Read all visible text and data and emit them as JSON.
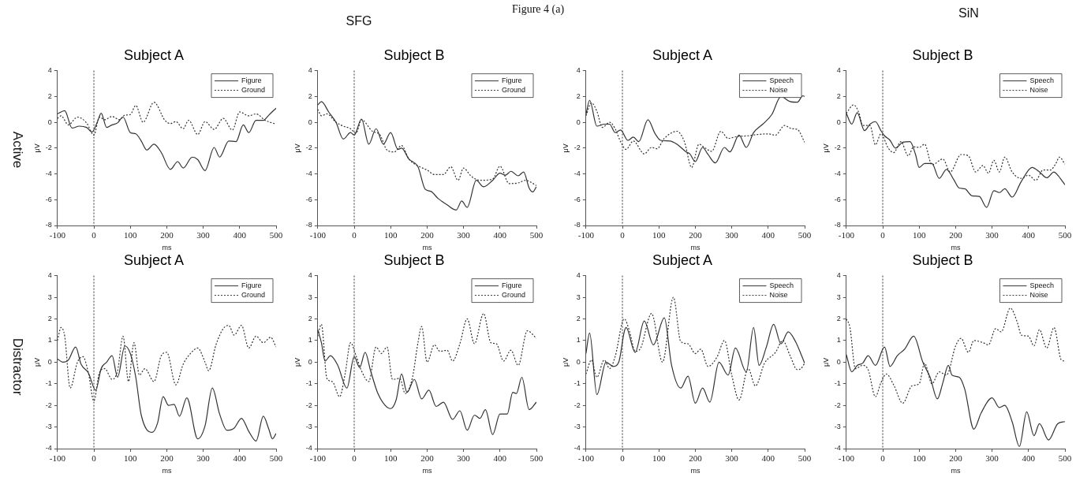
{
  "chart_data": [
    {
      "type": "line",
      "title": "Subject A",
      "xlabel": "ms",
      "ylabel": "μV",
      "annotations": [
        "Figure 4 (a)",
        "SFG",
        "Active"
      ],
      "xlim": [
        -100,
        500
      ],
      "xticks": [
        -100,
        0,
        100,
        200,
        300,
        400,
        500
      ],
      "ylim": [
        -8,
        4
      ],
      "yticks": [
        -8,
        -6,
        -4,
        -2,
        0,
        2,
        4
      ],
      "grid": false,
      "legend": "top right",
      "marker": "none",
      "ref_lines": [
        {
          "axis": "x",
          "value": 0,
          "line_style": "dotted",
          "color": "#333333"
        }
      ],
      "series": [
        {
          "name": "Figure",
          "color": "#333333",
          "line_style": "solid",
          "x": [
            -100,
            -80,
            -60,
            -40,
            -20,
            -5,
            10,
            20,
            35,
            50,
            65,
            80,
            100,
            115,
            130,
            145,
            165,
            185,
            210,
            230,
            245,
            270,
            285,
            305,
            330,
            345,
            370,
            390,
            410,
            425,
            445,
            465,
            480,
            500
          ],
          "values": [
            0.65,
            0.9,
            -0.45,
            -0.3,
            -0.4,
            -0.75,
            0.05,
            0.7,
            -0.4,
            -0.2,
            -0.05,
            0.4,
            -0.8,
            -0.9,
            -1.45,
            -2.15,
            -1.7,
            -2.35,
            -3.65,
            -3.05,
            -3.55,
            -2.7,
            -2.9,
            -3.75,
            -1.95,
            -2.7,
            -1.45,
            -1.5,
            -0.2,
            -0.8,
            0.15,
            0.15,
            0.55,
            1.1
          ]
        },
        {
          "name": "Ground",
          "color": "#333333",
          "line_style": "dotted",
          "x": [
            -100,
            -90,
            -70,
            -45,
            -20,
            0,
            15,
            30,
            50,
            70,
            85,
            100,
            115,
            135,
            165,
            195,
            210,
            225,
            245,
            260,
            285,
            305,
            330,
            355,
            380,
            400,
            425,
            445,
            470,
            500
          ],
          "values": [
            0.3,
            0.5,
            -0.2,
            0.4,
            -0.05,
            -1.0,
            0.4,
            0.2,
            0.45,
            0.2,
            0.55,
            0.6,
            1.3,
            0,
            1.55,
            0.15,
            -0.1,
            0.05,
            -0.5,
            0.15,
            -0.95,
            0.05,
            -0.55,
            0.3,
            -0.6,
            0.8,
            0.5,
            0.65,
            0.15,
            -0.15
          ]
        }
      ]
    },
    {
      "type": "line",
      "title": "Subject B",
      "xlabel": "ms",
      "ylabel": "μV",
      "xlim": [
        -100,
        500
      ],
      "xticks": [
        -100,
        0,
        100,
        200,
        300,
        400,
        500
      ],
      "ylim": [
        -8,
        4
      ],
      "yticks": [
        -8,
        -6,
        -4,
        -2,
        0,
        2,
        4
      ],
      "grid": false,
      "legend": "top right",
      "marker": "none",
      "ref_lines": [
        {
          "axis": "x",
          "value": 0,
          "line_style": "dotted",
          "color": "#333333"
        }
      ],
      "series": [
        {
          "name": "Figure",
          "color": "#333333",
          "line_style": "solid",
          "x": [
            -100,
            -90,
            -70,
            -50,
            -30,
            -10,
            0,
            20,
            40,
            60,
            80,
            100,
            120,
            130,
            150,
            175,
            195,
            210,
            230,
            255,
            280,
            295,
            310,
            335,
            355,
            380,
            400,
            415,
            430,
            450,
            465,
            480,
            490,
            500
          ],
          "values": [
            1.35,
            1.6,
            0.8,
            0,
            -1.3,
            -0.8,
            -1.0,
            0.25,
            -1.7,
            -0.5,
            -1.7,
            -0.8,
            -2.1,
            -2.0,
            -2.85,
            -3.45,
            -5.2,
            -5.35,
            -5.9,
            -6.4,
            -6.8,
            -6.1,
            -6.6,
            -4.5,
            -5.0,
            -4.5,
            -3.95,
            -4.1,
            -3.8,
            -4.15,
            -3.85,
            -5.1,
            -5.4,
            -5.0
          ]
        },
        {
          "name": "Ground",
          "color": "#333333",
          "line_style": "dotted",
          "x": [
            -100,
            -90,
            -75,
            -50,
            -30,
            -10,
            5,
            20,
            50,
            70,
            90,
            110,
            130,
            150,
            180,
            200,
            220,
            245,
            265,
            285,
            300,
            320,
            345,
            380,
            400,
            425,
            450,
            470,
            500
          ],
          "values": [
            1.0,
            0.5,
            0.65,
            0,
            -0.3,
            -0.5,
            -0.85,
            0.2,
            -0.7,
            -0.95,
            -2.15,
            -2.3,
            -1.8,
            -2.85,
            -3.45,
            -3.7,
            -4.05,
            -4.05,
            -3.45,
            -4.5,
            -3.55,
            -4.15,
            -4.5,
            -4.4,
            -3.4,
            -4.75,
            -4.7,
            -4.5,
            -4.9
          ]
        }
      ]
    },
    {
      "type": "line",
      "title": "Subject A",
      "xlabel": "ms",
      "ylabel": "μV",
      "annotations": [
        "SiN"
      ],
      "xlim": [
        -100,
        500
      ],
      "xticks": [
        -100,
        0,
        100,
        200,
        300,
        400,
        500
      ],
      "ylim": [
        -8,
        4
      ],
      "yticks": [
        -8,
        -6,
        -4,
        -2,
        0,
        2,
        4
      ],
      "grid": false,
      "legend": "top right",
      "marker": "none",
      "ref_lines": [
        {
          "axis": "x",
          "value": 0,
          "line_style": "dotted",
          "color": "#333333"
        }
      ],
      "series": [
        {
          "name": "Speech",
          "color": "#333333",
          "line_style": "solid",
          "x": [
            -100,
            -90,
            -70,
            -50,
            -35,
            -20,
            -5,
            15,
            30,
            45,
            70,
            90,
            105,
            130,
            150,
            175,
            185,
            200,
            220,
            235,
            255,
            280,
            295,
            320,
            340,
            360,
            385,
            410,
            435,
            460,
            480,
            495,
            500
          ],
          "values": [
            0.6,
            1.7,
            -0.3,
            -0.15,
            -0.15,
            -0.8,
            -0.6,
            -1.4,
            -1.15,
            -1.5,
            0.2,
            -0.9,
            -1.4,
            -1.45,
            -1.7,
            -2.3,
            -2.45,
            -3.05,
            -1.95,
            -2.5,
            -3.15,
            -1.95,
            -2.3,
            -1.0,
            -1.95,
            -0.8,
            -0.15,
            0.6,
            2.0,
            1.6,
            1.55,
            2.05,
            2.0
          ]
        },
        {
          "name": "Noise",
          "color": "#333333",
          "line_style": "dotted",
          "x": [
            -100,
            -85,
            -70,
            -55,
            -35,
            -20,
            -5,
            10,
            30,
            60,
            80,
            95,
            115,
            150,
            170,
            190,
            210,
            225,
            245,
            270,
            290,
            315,
            345,
            370,
            400,
            420,
            445,
            465,
            480,
            500
          ],
          "values": [
            0.5,
            1.5,
            0.85,
            -0.4,
            0,
            -0.5,
            -1.5,
            -2.1,
            -1.45,
            -2.45,
            -1.95,
            -2.05,
            -1.25,
            -0.7,
            -1.5,
            -3.5,
            -1.7,
            -1.95,
            -2.25,
            -0.7,
            -1.25,
            -1.1,
            -1.05,
            -0.95,
            -0.9,
            -1.0,
            -0.25,
            -0.5,
            -0.55,
            -1.55
          ]
        }
      ]
    },
    {
      "type": "line",
      "title": "Subject B",
      "xlabel": "ms",
      "ylabel": "μV",
      "xlim": [
        -100,
        500
      ],
      "xticks": [
        -100,
        0,
        100,
        200,
        300,
        400,
        500
      ],
      "ylim": [
        -8,
        4
      ],
      "yticks": [
        -8,
        -6,
        -4,
        -2,
        0,
        2,
        4
      ],
      "grid": false,
      "legend": "top right",
      "marker": "none",
      "ref_lines": [
        {
          "axis": "x",
          "value": 0,
          "line_style": "dotted",
          "color": "#333333"
        }
      ],
      "series": [
        {
          "name": "Speech",
          "color": "#333333",
          "line_style": "solid",
          "x": [
            -100,
            -85,
            -70,
            -50,
            -35,
            -20,
            -5,
            5,
            20,
            35,
            55,
            75,
            90,
            100,
            115,
            135,
            155,
            175,
            195,
            210,
            225,
            245,
            265,
            285,
            305,
            320,
            335,
            355,
            380,
            410,
            430,
            450,
            470,
            480,
            500
          ],
          "values": [
            0.7,
            -0.15,
            0.75,
            -0.65,
            -0.15,
            0.05,
            -0.65,
            -1.05,
            -1.4,
            -2.0,
            -1.55,
            -1.5,
            -2.5,
            -3.5,
            -3.2,
            -3.2,
            -4.35,
            -3.65,
            -4.45,
            -5.1,
            -5.15,
            -5.7,
            -5.75,
            -6.6,
            -5.3,
            -5.45,
            -5.15,
            -5.8,
            -4.6,
            -3.5,
            -3.85,
            -4.3,
            -3.85,
            -4.1,
            -4.85
          ]
        },
        {
          "name": "Noise",
          "color": "#333333",
          "line_style": "dotted",
          "x": [
            -100,
            -80,
            -65,
            -55,
            -35,
            -20,
            -5,
            15,
            30,
            50,
            70,
            85,
            100,
            115,
            135,
            165,
            185,
            215,
            235,
            255,
            275,
            290,
            305,
            320,
            335,
            355,
            380,
            400,
            420,
            440,
            460,
            475,
            485,
            500
          ],
          "values": [
            0.7,
            1.35,
            0.7,
            -0.25,
            -0.25,
            -1.75,
            -0.9,
            -2.0,
            -2.35,
            -1.5,
            -2.6,
            -1.9,
            -1.95,
            -1.7,
            -3.3,
            -2.85,
            -3.85,
            -2.5,
            -2.6,
            -3.85,
            -3.35,
            -3.95,
            -2.95,
            -3.85,
            -2.7,
            -3.85,
            -4.35,
            -4.1,
            -4.5,
            -3.7,
            -3.7,
            -3.2,
            -2.7,
            -3.25
          ]
        }
      ]
    },
    {
      "type": "line",
      "title": "Subject A",
      "xlabel": "ms",
      "ylabel": "μV",
      "annotations": [
        "Distractor"
      ],
      "xlim": [
        -100,
        500
      ],
      "xticks": [
        -100,
        0,
        100,
        200,
        300,
        400,
        500
      ],
      "ylim": [
        -4,
        4
      ],
      "yticks": [
        -4,
        -3,
        -2,
        -1,
        0,
        1,
        2,
        3,
        4
      ],
      "grid": false,
      "legend": "top right",
      "marker": "none",
      "ref_lines": [
        {
          "axis": "x",
          "value": 0,
          "line_style": "dotted",
          "color": "#333333"
        }
      ],
      "series": [
        {
          "name": "Figure",
          "color": "#333333",
          "line_style": "solid",
          "x": [
            -100,
            -85,
            -70,
            -50,
            -35,
            -15,
            5,
            20,
            35,
            50,
            65,
            85,
            100,
            115,
            130,
            160,
            175,
            190,
            205,
            220,
            235,
            255,
            285,
            305,
            325,
            345,
            365,
            385,
            405,
            425,
            445,
            465,
            480,
            490,
            500
          ],
          "values": [
            0.15,
            0,
            0.1,
            0.7,
            -0.1,
            -0.5,
            -1.3,
            -0.3,
            0,
            0.3,
            -0.7,
            0.75,
            0.4,
            -0.7,
            -2.45,
            -3.25,
            -2.8,
            -1.6,
            -2.0,
            -1.95,
            -2.5,
            -1.65,
            -3.55,
            -2.95,
            -1.2,
            -2.4,
            -3.15,
            -3.05,
            -2.6,
            -3.2,
            -3.65,
            -2.5,
            -3.1,
            -3.55,
            -3.3
          ]
        },
        {
          "name": "Ground",
          "color": "#333333",
          "line_style": "dotted",
          "x": [
            -100,
            -90,
            -80,
            -65,
            -45,
            -30,
            -15,
            0,
            15,
            30,
            50,
            65,
            80,
            95,
            110,
            125,
            140,
            165,
            185,
            200,
            225,
            245,
            265,
            285,
            305,
            315,
            335,
            355,
            370,
            385,
            405,
            425,
            445,
            465,
            485,
            500
          ],
          "values": [
            1.0,
            1.6,
            1.2,
            -1.2,
            0,
            0.25,
            -0.5,
            -1.8,
            -0.5,
            -0.3,
            -0.8,
            -0.4,
            1.2,
            -0.9,
            0.9,
            -0.6,
            -0.3,
            -0.9,
            0.3,
            0.45,
            -1.05,
            -0.1,
            0.4,
            0.65,
            0,
            -0.4,
            0.8,
            1.55,
            1.7,
            1.25,
            1.7,
            0.65,
            1.2,
            0.9,
            1.15,
            0.7
          ]
        }
      ]
    },
    {
      "type": "line",
      "title": "Subject B",
      "xlabel": "ms",
      "ylabel": "μV",
      "xlim": [
        -100,
        500
      ],
      "xticks": [
        -100,
        0,
        100,
        200,
        300,
        400,
        500
      ],
      "ylim": [
        -4,
        4
      ],
      "yticks": [
        -4,
        -3,
        -2,
        -1,
        0,
        1,
        2,
        3,
        4
      ],
      "grid": false,
      "legend": "top right",
      "marker": "none",
      "ref_lines": [
        {
          "axis": "x",
          "value": 0,
          "line_style": "dotted",
          "color": "#333333"
        }
      ],
      "series": [
        {
          "name": "Figure",
          "color": "#333333",
          "line_style": "solid",
          "x": [
            -100,
            -90,
            -80,
            -65,
            -45,
            -20,
            0,
            15,
            30,
            45,
            65,
            85,
            100,
            115,
            130,
            145,
            165,
            185,
            205,
            225,
            245,
            270,
            290,
            310,
            330,
            345,
            360,
            380,
            400,
            420,
            435,
            445,
            460,
            480,
            500
          ],
          "values": [
            1.5,
            0.9,
            0.05,
            0.3,
            -0.15,
            -1.2,
            0.25,
            -0.25,
            0.45,
            -0.4,
            -1.45,
            -2.0,
            -2.15,
            -1.75,
            -0.55,
            -1.4,
            -0.8,
            -1.7,
            -1.3,
            -2.05,
            -1.85,
            -2.65,
            -2.25,
            -3.15,
            -2.45,
            -2.6,
            -2.2,
            -3.35,
            -2.4,
            -2.4,
            -1.4,
            -1.45,
            -0.7,
            -2.2,
            -1.85
          ]
        },
        {
          "name": "Ground",
          "color": "#333333",
          "line_style": "dotted",
          "x": [
            -100,
            -90,
            -75,
            -60,
            -40,
            -25,
            -10,
            5,
            20,
            40,
            60,
            75,
            90,
            105,
            125,
            140,
            160,
            175,
            185,
            200,
            220,
            235,
            255,
            270,
            290,
            310,
            330,
            355,
            375,
            390,
            410,
            430,
            450,
            475,
            500
          ],
          "values": [
            1.2,
            1.75,
            -0.75,
            -0.9,
            -1.6,
            -0.55,
            0.9,
            0.3,
            -0.4,
            -0.9,
            0.7,
            0.4,
            0.7,
            -0.8,
            -0.75,
            -1.45,
            -0.7,
            0.9,
            1.65,
            0,
            0.8,
            0.5,
            0.55,
            0.05,
            0.85,
            2.0,
            0.85,
            2.25,
            0.9,
            0.85,
            0.05,
            0.55,
            -0.15,
            1.45,
            1.1
          ]
        }
      ]
    },
    {
      "type": "line",
      "title": "Subject A",
      "xlabel": "ms",
      "ylabel": "μV",
      "xlim": [
        -100,
        500
      ],
      "xticks": [
        -100,
        0,
        100,
        200,
        300,
        400,
        500
      ],
      "ylim": [
        -4,
        4
      ],
      "yticks": [
        -4,
        -3,
        -2,
        -1,
        0,
        1,
        2,
        3,
        4
      ],
      "grid": false,
      "legend": "top right",
      "marker": "none",
      "ref_lines": [
        {
          "axis": "x",
          "value": 0,
          "line_style": "dotted",
          "color": "#333333"
        }
      ],
      "series": [
        {
          "name": "Speech",
          "color": "#333333",
          "line_style": "solid",
          "x": [
            -100,
            -90,
            -70,
            -45,
            -25,
            -10,
            5,
            10,
            35,
            60,
            85,
            115,
            135,
            160,
            180,
            200,
            220,
            240,
            265,
            290,
            310,
            340,
            360,
            375,
            395,
            415,
            435,
            455,
            475,
            500
          ],
          "values": [
            0.4,
            1.35,
            -1.5,
            0,
            -0.2,
            0,
            1.4,
            1.6,
            0.45,
            1.9,
            0.8,
            2.05,
            -0.15,
            -1.2,
            -0.65,
            -1.9,
            -1.2,
            -1.85,
            0,
            -0.6,
            0.65,
            -0.45,
            1.6,
            -0.15,
            0.7,
            1.75,
            0.85,
            1.4,
            0.95,
            -0.05
          ]
        },
        {
          "name": "Noise",
          "color": "#333333",
          "line_style": "dotted",
          "x": [
            -100,
            -85,
            -70,
            -50,
            -35,
            -20,
            5,
            20,
            35,
            50,
            80,
            110,
            140,
            160,
            180,
            200,
            215,
            235,
            260,
            280,
            300,
            320,
            345,
            365,
            390,
            420,
            440,
            460,
            480,
            490,
            500
          ],
          "values": [
            -0.55,
            0.1,
            -0.7,
            0.1,
            -0.3,
            0.25,
            2.0,
            1.4,
            0.5,
            0.65,
            2.25,
            0,
            3.0,
            0.95,
            0.85,
            0.4,
            0.6,
            -0.2,
            0.25,
            1.0,
            -0.6,
            -1.75,
            -0.3,
            -1.1,
            -0.05,
            0.45,
            1.0,
            0.3,
            -0.35,
            -0.3,
            -0.05
          ]
        }
      ]
    },
    {
      "type": "line",
      "title": "Subject B",
      "xlabel": "ms",
      "ylabel": "μV",
      "xlim": [
        -100,
        500
      ],
      "xticks": [
        -100,
        0,
        100,
        200,
        300,
        400,
        500
      ],
      "ylim": [
        -4,
        4
      ],
      "yticks": [
        -4,
        -3,
        -2,
        -1,
        0,
        1,
        2,
        3,
        4
      ],
      "grid": false,
      "legend": "top right",
      "marker": "none",
      "ref_lines": [
        {
          "axis": "x",
          "value": 0,
          "line_style": "dotted",
          "color": "#333333"
        }
      ],
      "series": [
        {
          "name": "Speech",
          "color": "#333333",
          "line_style": "solid",
          "x": [
            -100,
            -85,
            -70,
            -55,
            -40,
            -20,
            5,
            20,
            40,
            60,
            85,
            110,
            130,
            150,
            165,
            180,
            190,
            210,
            225,
            250,
            270,
            300,
            320,
            335,
            355,
            375,
            395,
            415,
            430,
            455,
            480,
            500
          ],
          "values": [
            0.35,
            -0.45,
            -0.15,
            -0.05,
            0.3,
            -0.15,
            0.7,
            -0.2,
            0.3,
            0.6,
            1.2,
            0,
            -0.7,
            -1.7,
            -0.95,
            -0.15,
            -0.6,
            -0.7,
            -1.25,
            -3.1,
            -2.35,
            -1.65,
            -2.1,
            -2.0,
            -2.75,
            -3.9,
            -2.3,
            -3.4,
            -2.85,
            -3.6,
            -2.85,
            -2.75
          ]
        },
        {
          "name": "Noise",
          "color": "#333333",
          "line_style": "dotted",
          "x": [
            -100,
            -90,
            -75,
            -55,
            -40,
            -20,
            -5,
            10,
            30,
            55,
            80,
            100,
            115,
            135,
            155,
            175,
            200,
            215,
            235,
            250,
            275,
            290,
            310,
            325,
            350,
            370,
            380,
            400,
            415,
            430,
            450,
            470,
            490,
            500
          ],
          "values": [
            2.0,
            1.6,
            -0.3,
            -0.15,
            -0.35,
            -1.6,
            -0.95,
            -0.55,
            -1.05,
            -1.9,
            -1.1,
            -1.0,
            -0.05,
            -1.0,
            -0.45,
            -0.6,
            0.75,
            1.1,
            0.45,
            1.0,
            0.9,
            0.8,
            1.55,
            1.4,
            2.5,
            1.8,
            1.25,
            1.2,
            0.75,
            1.5,
            0.65,
            1.6,
            0.1,
            0.05
          ]
        }
      ]
    }
  ]
}
